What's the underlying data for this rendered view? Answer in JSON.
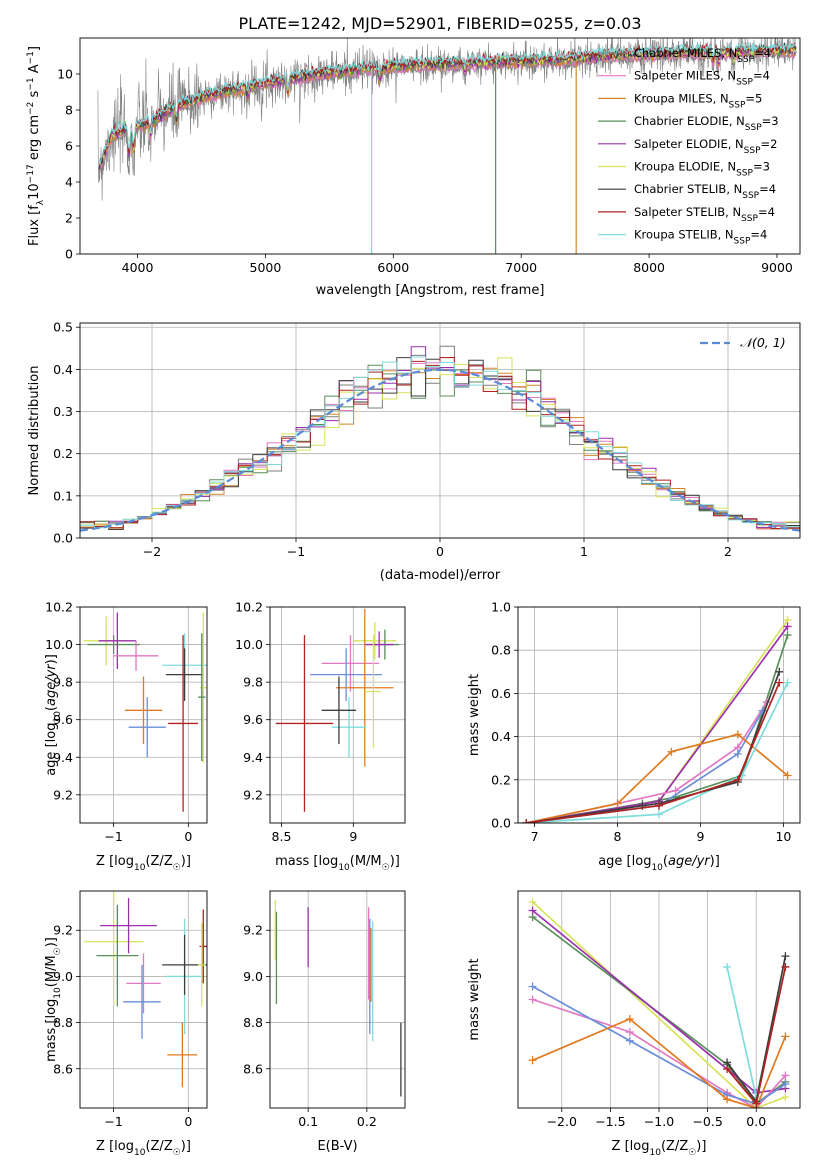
{
  "figure": {
    "title": "PLATE=1242, MJD=52901, FIBERID=0255, z=0.03"
  },
  "colors": {
    "data": "#808080",
    "models": [
      "#7f7f7f",
      "#e377c2",
      "#d2872b",
      "#5a8f5a",
      "#9b2fae",
      "#d8e25a",
      "#3d3d3d",
      "#b22222",
      "#7fdcdc"
    ],
    "triangle": [
      "#d8e25a",
      "#5a8f5a",
      "#9b2fae",
      "#e377c2",
      "#6a8fd8",
      "#e07a20",
      "#7fdcdc",
      "#3d3d3d",
      "#b22222"
    ],
    "normal": "#5b8bd6"
  },
  "chart_data": [
    {
      "id": "spectrum",
      "type": "line",
      "title": "PLATE=1242, MJD=52901, FIBERID=0255, z=0.03",
      "xlabel": "wavelength [Angstrom, rest frame]",
      "ylabel": "Flux [f_λ 10^-17 erg cm^-2 s^-1 A^-1]",
      "xlim": [
        3550,
        9180
      ],
      "ylim": [
        0,
        12
      ],
      "xticks": [
        4000,
        5000,
        6000,
        7000,
        8000,
        9000
      ],
      "yticks": [
        0,
        2,
        4,
        6,
        8,
        10
      ],
      "continuum_x": [
        3700,
        3800,
        3950,
        4100,
        4300,
        4600,
        5000,
        5400,
        5800,
        6200,
        6600,
        7000,
        7400,
        7600,
        8000,
        8500,
        9000
      ],
      "continuum_y": [
        4.8,
        6.6,
        7.0,
        7.3,
        8.2,
        8.9,
        9.5,
        10.0,
        10.3,
        10.5,
        10.6,
        10.7,
        10.8,
        11.0,
        11.1,
        11.2,
        11.3
      ],
      "legend": [
        "Chabrier MILES, N_SSP=4",
        "Salpeter MILES, N_SSP=4",
        "Kroupa MILES, N_SSP=5",
        "Chabrier ELODIE, N_SSP=3",
        "Salpeter ELODIE, N_SSP=2",
        "Kroupa ELODIE, N_SSP=3",
        "Chabrier STELIB, N_SSP=4",
        "Salpeter STELIB, N_SSP=4",
        "Kroupa STELIB, N_SSP=4"
      ],
      "legend_placement": "upper right",
      "grid": false
    },
    {
      "id": "residuals",
      "type": "line",
      "xlabel": "(data-model)/error",
      "ylabel": "Normed distribution",
      "xlim": [
        -2.5,
        2.5
      ],
      "ylim": [
        0,
        0.51
      ],
      "xticks": [
        -2,
        -1,
        0,
        1,
        2
      ],
      "yticks": [
        0.0,
        0.1,
        0.2,
        0.3,
        0.4,
        0.5
      ],
      "bin_width": 0.1,
      "legend": [
        "𝒩(0, 1)"
      ],
      "legend_placement": "upper right",
      "grid": true
    },
    {
      "id": "age-vs-Z",
      "type": "scatter",
      "xlabel": "Z [log10(Z/Z☉)]",
      "ylabel": "age [log10(age/yr)]",
      "xlim": [
        -1.45,
        0.25
      ],
      "ylim": [
        9.05,
        10.2
      ],
      "xticks": [
        -1,
        0
      ],
      "yticks": [
        9.2,
        9.4,
        9.6,
        9.8,
        10.0,
        10.2
      ],
      "points": [
        {
          "x": -1.1,
          "xerr": 0.3,
          "y": 10.02,
          "yerr": 0.13
        },
        {
          "x": -1.0,
          "xerr": 0.35,
          "y": 10.0,
          "yerr": 0.05
        },
        {
          "x": -0.95,
          "xerr": 0.25,
          "y": 10.02,
          "yerr": 0.15
        },
        {
          "x": -0.7,
          "xerr": 0.3,
          "y": 9.94,
          "yerr": 0.08
        },
        {
          "x": -0.55,
          "xerr": 0.25,
          "y": 9.56,
          "yerr": 0.16
        },
        {
          "x": -0.6,
          "xerr": 0.25,
          "y": 9.65,
          "yerr": 0.18
        },
        {
          "x": -0.05,
          "xerr": 0.3,
          "y": 9.89,
          "yerr": 0.17
        },
        {
          "x": -0.05,
          "xerr": 0.25,
          "y": 9.84,
          "yerr": 0.14
        },
        {
          "x": -0.07,
          "xerr": 0.2,
          "y": 9.58,
          "yerr": 0.47
        },
        {
          "x": 0.2,
          "xerr": 0.05,
          "y": 9.77,
          "yerr": 0.4
        },
        {
          "x": 0.18,
          "xerr": 0.05,
          "y": 9.72,
          "yerr": 0.34
        }
      ],
      "grid": true
    },
    {
      "id": "age-vs-mass",
      "type": "scatter",
      "xlabel": "mass [log10(M/M☉)]",
      "ylabel": "",
      "xlim": [
        8.42,
        9.36
      ],
      "ylim": [
        9.05,
        10.2
      ],
      "xticks": [
        8.5,
        9.0
      ],
      "yticks": [
        9.2,
        9.4,
        9.6,
        9.8,
        10.0,
        10.2
      ],
      "points": [
        {
          "x": 9.15,
          "xerr": 0.15,
          "y": 10.02,
          "yerr": 0.1
        },
        {
          "x": 9.22,
          "xerr": 0.1,
          "y": 10.0,
          "yerr": 0.08
        },
        {
          "x": 9.18,
          "xerr": 0.1,
          "y": 10.0,
          "yerr": 0.07
        },
        {
          "x": 8.98,
          "xerr": 0.2,
          "y": 9.9,
          "yerr": 0.15
        },
        {
          "x": 8.95,
          "xerr": 0.25,
          "y": 9.84,
          "yerr": 0.14
        },
        {
          "x": 9.08,
          "xerr": 0.2,
          "y": 9.77,
          "yerr": 0.42
        },
        {
          "x": 8.97,
          "xerr": 0.12,
          "y": 9.56,
          "yerr": 0.16
        },
        {
          "x": 8.9,
          "xerr": 0.12,
          "y": 9.65,
          "yerr": 0.18
        },
        {
          "x": 8.66,
          "xerr": 0.2,
          "y": 9.58,
          "yerr": 0.47
        },
        {
          "x": 9.14,
          "xerr": 0.05,
          "y": 9.75,
          "yerr": 0.3
        }
      ],
      "grid": true
    },
    {
      "id": "mass-weight-vs-age",
      "type": "line",
      "xlabel": "age [log10(age/yr)]",
      "ylabel": "mass weight",
      "xlim": [
        6.8,
        10.2
      ],
      "ylim": [
        0,
        1
      ],
      "xticks": [
        7,
        8,
        9,
        10
      ],
      "yticks": [
        0.0,
        0.2,
        0.4,
        0.6,
        0.8,
        1.0
      ],
      "series": [
        {
          "x": [
            6.9,
            8.5,
            10.05
          ],
          "y": [
            0.0,
            0.1,
            0.94
          ]
        },
        {
          "x": [
            6.9,
            8.3,
            8.7,
            9.5,
            10.05
          ],
          "y": [
            0.0,
            0.09,
            0.12,
            0.22,
            0.87
          ]
        },
        {
          "x": [
            6.9,
            8.5,
            10.05
          ],
          "y": [
            0.0,
            0.1,
            0.91
          ]
        },
        {
          "x": [
            6.9,
            8.0,
            8.7,
            9.45,
            9.8
          ],
          "y": [
            0.0,
            0.09,
            0.15,
            0.35,
            0.56
          ]
        },
        {
          "x": [
            6.9,
            8.5,
            9.45,
            9.75
          ],
          "y": [
            0.0,
            0.08,
            0.32,
            0.52
          ]
        },
        {
          "x": [
            6.9,
            8.0,
            8.65,
            9.45,
            10.05
          ],
          "y": [
            0.0,
            0.09,
            0.33,
            0.41,
            0.22
          ]
        },
        {
          "x": [
            6.9,
            8.5,
            9.5,
            10.05
          ],
          "y": [
            0.0,
            0.04,
            0.22,
            0.65
          ]
        },
        {
          "x": [
            6.9,
            8.3,
            8.5,
            9.45,
            9.95
          ],
          "y": [
            0.0,
            0.08,
            0.09,
            0.19,
            0.7
          ]
        },
        {
          "x": [
            6.9,
            8.5,
            9.45,
            9.95
          ],
          "y": [
            0.0,
            0.08,
            0.2,
            0.65
          ]
        }
      ],
      "grid": true
    },
    {
      "id": "mass-vs-Z",
      "type": "scatter",
      "xlabel": "Z [log10(Z/Z☉)]",
      "ylabel": "mass [log10(M/M☉)]",
      "xlim": [
        -1.45,
        0.25
      ],
      "ylim": [
        8.43,
        9.37
      ],
      "xticks": [
        -1,
        0
      ],
      "yticks": [
        8.6,
        8.8,
        9.0,
        9.2
      ],
      "points": [
        {
          "x": -1.0,
          "xerr": 0.4,
          "y": 9.15,
          "yerr": 0.27
        },
        {
          "x": -0.95,
          "xerr": 0.28,
          "y": 9.09,
          "yerr": 0.22
        },
        {
          "x": -0.8,
          "xerr": 0.38,
          "y": 9.22,
          "yerr": 0.12
        },
        {
          "x": -0.6,
          "xerr": 0.23,
          "y": 8.97,
          "yerr": 0.13
        },
        {
          "x": -0.62,
          "xerr": 0.25,
          "y": 8.89,
          "yerr": 0.16
        },
        {
          "x": -0.08,
          "xerr": 0.2,
          "y": 8.66,
          "yerr": 0.14
        },
        {
          "x": -0.05,
          "xerr": 0.25,
          "y": 9.0,
          "yerr": 0.25
        },
        {
          "x": -0.05,
          "xerr": 0.3,
          "y": 9.05,
          "yerr": 0.13
        },
        {
          "x": 0.2,
          "xerr": 0.05,
          "y": 9.13,
          "yerr": 0.16
        },
        {
          "x": 0.18,
          "xerr": 0.05,
          "y": 9.05,
          "yerr": 0.18
        }
      ],
      "grid": true
    },
    {
      "id": "mass-vs-EBV",
      "type": "scatter",
      "xlabel": "E(B-V)",
      "ylabel": "",
      "xlim": [
        0.035,
        0.265
      ],
      "ylim": [
        8.43,
        9.37
      ],
      "xticks": [
        0.1,
        0.2
      ],
      "yticks": [
        8.6,
        8.8,
        9.0,
        9.2
      ],
      "points": [
        {
          "x": 0.044,
          "y": 9.2,
          "yerr": 0.13
        },
        {
          "x": 0.046,
          "y": 9.08,
          "yerr": 0.2
        },
        {
          "x": 0.1,
          "y": 9.17,
          "yerr": 0.13
        },
        {
          "x": 0.203,
          "y": 9.1,
          "yerr": 0.2
        },
        {
          "x": 0.205,
          "y": 9.0,
          "yerr": 0.25
        },
        {
          "x": 0.207,
          "y": 9.05,
          "yerr": 0.16
        },
        {
          "x": 0.21,
          "y": 8.98,
          "yerr": 0.26
        },
        {
          "x": 0.258,
          "y": 8.64,
          "yerr": 0.16
        }
      ],
      "grid": true
    },
    {
      "id": "mass-weight-vs-Z",
      "type": "line",
      "xlabel": "Z [log10(Z/Z☉)]",
      "ylabel": "mass weight",
      "xlim": [
        -2.45,
        0.45
      ],
      "ylim": [
        0,
        1
      ],
      "xticks": [
        -2.0,
        -1.5,
        -1.0,
        -0.5,
        0.0
      ],
      "series": [
        {
          "x": [
            -2.3,
            0.0,
            0.3
          ],
          "y": [
            0.95,
            0.0,
            0.05
          ]
        },
        {
          "x": [
            -2.3,
            -0.3,
            0.0,
            0.3
          ],
          "y": [
            0.88,
            0.2,
            0.02,
            0.12
          ]
        },
        {
          "x": [
            -2.3,
            0.0,
            0.3
          ],
          "y": [
            0.91,
            0.07,
            0.09
          ]
        },
        {
          "x": [
            -2.3,
            -1.3,
            -0.3,
            0.0,
            0.3
          ],
          "y": [
            0.5,
            0.35,
            0.07,
            0.0,
            0.15
          ]
        },
        {
          "x": [
            -2.3,
            -1.3,
            -0.3,
            0.0,
            0.3
          ],
          "y": [
            0.56,
            0.31,
            0.06,
            0.02,
            0.11
          ]
        },
        {
          "x": [
            -2.3,
            -1.3,
            -0.3,
            0.0,
            0.3
          ],
          "y": [
            0.22,
            0.41,
            0.04,
            0.0,
            0.33
          ]
        },
        {
          "x": [
            -0.3,
            0.0,
            0.3
          ],
          "y": [
            0.65,
            0.05,
            0.65
          ]
        },
        {
          "x": [
            -0.3,
            0.0,
            0.3
          ],
          "y": [
            0.21,
            0.03,
            0.7
          ]
        },
        {
          "x": [
            -0.3,
            0.0,
            0.3
          ],
          "y": [
            0.18,
            0.02,
            0.65
          ]
        }
      ],
      "grid": true
    }
  ]
}
